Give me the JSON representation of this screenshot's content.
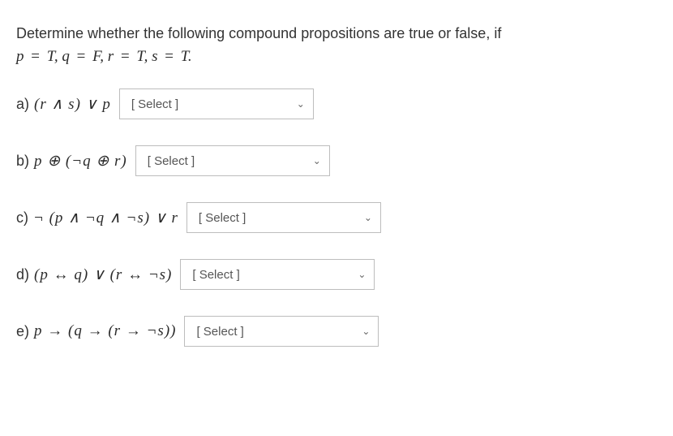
{
  "prompt": "Determine whether the following compound propositions are true or false, if",
  "assignment": {
    "parts": [
      {
        "var": "p",
        "val": "T"
      },
      {
        "var": "q",
        "val": "F"
      },
      {
        "var": "r",
        "val": "T"
      },
      {
        "var": "s",
        "val": "T"
      }
    ],
    "separator": ", ",
    "terminator": "."
  },
  "select_placeholder": "[ Select ]",
  "questions": {
    "a": {
      "label": "a)",
      "expr_html": "(<i>r</i> ∧ <i>s</i>) ∨ <i>p</i>",
      "select_width": 244
    },
    "b": {
      "label": "b)",
      "expr_html": "<i>p</i> ⊕ (¬<i>q</i> ⊕ <i>r</i>)",
      "select_width": 244
    },
    "c": {
      "label": "c)",
      "expr_html": "¬ (<i>p</i> ∧ ¬<i>q</i> ∧ ¬<i>s</i>) ∨ <i>r</i>",
      "select_width": 244
    },
    "d": {
      "label": "d)",
      "expr_html": "(<i>p</i> ↔ <i>q</i>) ∨ (<i>r</i> ↔ ¬<i>s</i>)",
      "select_width": 244
    },
    "e": {
      "label": "e)",
      "expr_html": "<i>p</i> → (<i>q</i> → (<i>r</i> → ¬<i>s</i>))",
      "select_width": 244
    }
  },
  "colors": {
    "text": "#333333",
    "math": "#2b2b2b",
    "border": "#bdbdbd",
    "background": "#ffffff",
    "select_text": "#555555",
    "chevron": "#666666"
  },
  "fontsize": {
    "prompt": 18,
    "math": 19,
    "select": 15
  }
}
